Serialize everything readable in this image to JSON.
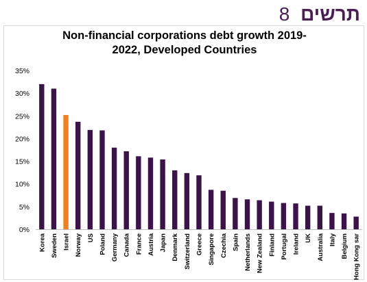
{
  "header": {
    "word": "תרשים",
    "number": "8",
    "color": "#4b1c55"
  },
  "chart_data": {
    "type": "bar",
    "title_lines": [
      "Non-financial corporations debt growth 2019-",
      "2022, Developed Countries"
    ],
    "categories": [
      "Korea",
      "Sweden",
      "Israel",
      "Norway",
      "US",
      "Poland",
      "Germany",
      "Canada",
      "France",
      "Austria",
      "Japan",
      "Denmark",
      "Switzerland",
      "Greece",
      "Singapore",
      "Czechia",
      "Spain",
      "Netherlands",
      "New Zealand",
      "Finland",
      "Portugal",
      "Ireland",
      "UK",
      "Australia",
      "Italy",
      "Belgium",
      "Hong Kong sar"
    ],
    "values": [
      32.0,
      31.0,
      25.2,
      23.7,
      21.9,
      21.8,
      18.0,
      17.2,
      16.1,
      15.8,
      15.4,
      13.0,
      12.4,
      11.9,
      8.7,
      8.5,
      6.9,
      6.6,
      6.4,
      6.1,
      5.8,
      5.7,
      5.2,
      5.2,
      3.6,
      3.5,
      2.8
    ],
    "highlight_category": "Israel",
    "colors": {
      "default": "#3b1249",
      "highlight": "#f07f1e"
    },
    "yticks": [
      "0%",
      "5%",
      "10%",
      "15%",
      "20%",
      "25%",
      "30%",
      "35%"
    ],
    "ylim": [
      0,
      35
    ],
    "grid": false,
    "legend": "none"
  }
}
